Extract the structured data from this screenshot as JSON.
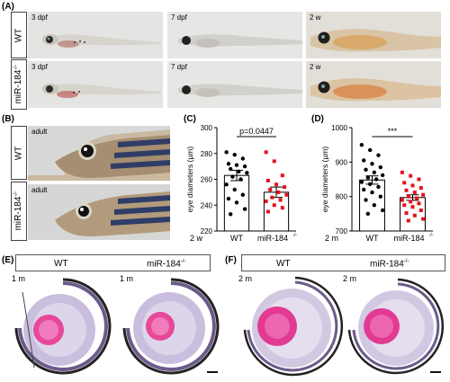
{
  "panels": {
    "A": "(A)",
    "B": "(B)",
    "C": "(C)",
    "D": "(D)",
    "E": "(E)",
    "F": "(F)"
  },
  "rows": {
    "wt": "WT",
    "mut_base": "miR-184",
    "sup": "-/-"
  },
  "panel_a": {
    "captions": [
      "3 dpf",
      "7 dpf",
      "2 w",
      "3 dpf",
      "7 dpf",
      "2 w"
    ]
  },
  "panel_b": {
    "captions": [
      "adult",
      "adult"
    ]
  },
  "panel_e": {
    "header_wt": "WT",
    "header_mut": "miR-184",
    "captions": [
      "1 m",
      "1 m"
    ]
  },
  "panel_f": {
    "header_wt": "WT",
    "header_mut": "miR-184",
    "captions": [
      "2 m",
      "2 m"
    ]
  },
  "colors": {
    "wt": "#000000",
    "mut": "#e8101a",
    "eye_pink": "#e0509c",
    "retina": "#b8a6cc"
  },
  "chart_data": [
    {
      "type": "bar",
      "panel": "C",
      "categories": [
        "WT",
        "miR-184-/-"
      ],
      "age_label": "2 w",
      "ylabel": "eye diameters (µm)",
      "ylim": [
        220,
        300
      ],
      "yticks": [
        220,
        240,
        260,
        280,
        300
      ],
      "means": [
        263,
        250
      ],
      "sem": [
        4,
        4
      ],
      "annotation": "p=0.0447",
      "points": [
        [
          281,
          279,
          276,
          272,
          271,
          270,
          268,
          266,
          265,
          262,
          260,
          256,
          252,
          248,
          245,
          242,
          237,
          233
        ],
        [
          281,
          274,
          263,
          259,
          256,
          254,
          252,
          250,
          248,
          246,
          244,
          243,
          240,
          238,
          235
        ]
      ]
    },
    {
      "type": "bar",
      "panel": "D",
      "categories": [
        "WT",
        "miR-184-/-"
      ],
      "age_label": "2 m",
      "ylabel": "eye diameters (µm)",
      "ylim": [
        700,
        1000
      ],
      "yticks": [
        700,
        800,
        900,
        1000
      ],
      "means": [
        848,
        797
      ],
      "sem": [
        12,
        8
      ],
      "annotation": "***",
      "points": [
        [
          950,
          935,
          920,
          905,
          895,
          885,
          878,
          870,
          862,
          855,
          850,
          842,
          836,
          828,
          820,
          812,
          800,
          790,
          775,
          760,
          750
        ],
        [
          870,
          860,
          850,
          840,
          832,
          825,
          818,
          812,
          805,
          800,
          795,
          790,
          785,
          780,
          775,
          770,
          760,
          752,
          745,
          735,
          730
        ]
      ]
    }
  ]
}
